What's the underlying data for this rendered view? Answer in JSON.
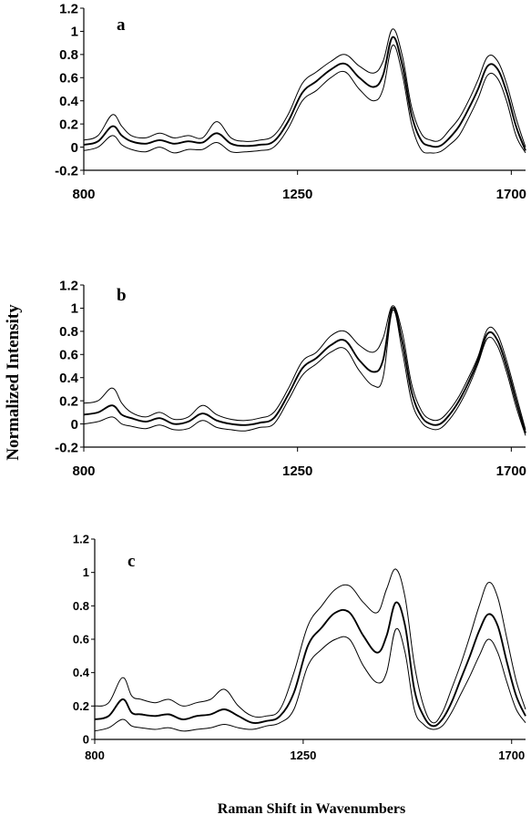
{
  "figure": {
    "ylabel": "Normalized Intensity",
    "xlabel": "Raman Shift in Wavenumbers"
  },
  "chart_data": [
    {
      "type": "line",
      "panel_label": "a",
      "xlim": [
        800,
        1730
      ],
      "ylim": [
        -0.2,
        1.2
      ],
      "xticks": [
        "800",
        "1250",
        "1700"
      ],
      "yticks": [
        "-0.2",
        "0",
        "0.2",
        "0.4",
        "0.6",
        "0.8",
        "1",
        "1.2"
      ],
      "grid": false,
      "x": [
        800,
        830,
        860,
        880,
        900,
        930,
        960,
        990,
        1020,
        1050,
        1080,
        1110,
        1140,
        1170,
        1200,
        1230,
        1260,
        1290,
        1320,
        1350,
        1380,
        1410,
        1430,
        1450,
        1470,
        1490,
        1510,
        1530,
        1550,
        1570,
        1590,
        1610,
        1630,
        1650,
        1670,
        1690,
        1710,
        1730
      ],
      "series": [
        {
          "values": [
            0.06,
            0.1,
            0.28,
            0.18,
            0.1,
            0.08,
            0.12,
            0.08,
            0.1,
            0.08,
            0.22,
            0.08,
            0.05,
            0.06,
            0.1,
            0.28,
            0.55,
            0.65,
            0.74,
            0.8,
            0.7,
            0.64,
            0.74,
            1.02,
            0.8,
            0.35,
            0.12,
            0.06,
            0.06,
            0.15,
            0.25,
            0.4,
            0.58,
            0.78,
            0.75,
            0.55,
            0.25,
            0.0
          ]
        },
        {
          "values": [
            0.02,
            0.05,
            0.18,
            0.1,
            0.05,
            0.03,
            0.06,
            0.03,
            0.05,
            0.04,
            0.12,
            0.03,
            0.01,
            0.02,
            0.05,
            0.22,
            0.47,
            0.57,
            0.67,
            0.72,
            0.6,
            0.52,
            0.62,
            0.95,
            0.72,
            0.28,
            0.06,
            0.01,
            0.01,
            0.08,
            0.18,
            0.33,
            0.5,
            0.7,
            0.68,
            0.48,
            0.18,
            -0.03
          ]
        },
        {
          "values": [
            -0.03,
            0.0,
            0.1,
            0.02,
            -0.02,
            -0.04,
            0.0,
            -0.05,
            -0.02,
            -0.02,
            0.04,
            -0.04,
            -0.04,
            -0.03,
            0.0,
            0.16,
            0.4,
            0.49,
            0.6,
            0.65,
            0.5,
            0.4,
            0.5,
            0.88,
            0.64,
            0.2,
            -0.02,
            -0.05,
            -0.04,
            0.02,
            0.1,
            0.25,
            0.42,
            0.62,
            0.6,
            0.4,
            0.1,
            -0.05
          ]
        }
      ]
    },
    {
      "type": "line",
      "panel_label": "b",
      "xlim": [
        800,
        1730
      ],
      "ylim": [
        -0.2,
        1.2
      ],
      "xticks": [
        "800",
        "1250",
        "1700"
      ],
      "yticks": [
        "-0.2",
        "0",
        "0.2",
        "0.4",
        "0.6",
        "0.8",
        "1",
        "1.2"
      ],
      "grid": false,
      "x": [
        800,
        830,
        860,
        880,
        900,
        930,
        960,
        990,
        1020,
        1050,
        1080,
        1110,
        1140,
        1170,
        1200,
        1230,
        1260,
        1290,
        1320,
        1350,
        1380,
        1410,
        1430,
        1450,
        1470,
        1490,
        1510,
        1530,
        1550,
        1570,
        1590,
        1610,
        1630,
        1650,
        1670,
        1690,
        1710,
        1730
      ],
      "series": [
        {
          "values": [
            0.18,
            0.2,
            0.31,
            0.18,
            0.1,
            0.06,
            0.1,
            0.04,
            0.06,
            0.16,
            0.08,
            0.04,
            0.03,
            0.05,
            0.1,
            0.3,
            0.54,
            0.62,
            0.76,
            0.8,
            0.68,
            0.62,
            0.74,
            1.02,
            0.8,
            0.35,
            0.12,
            0.04,
            0.04,
            0.12,
            0.24,
            0.4,
            0.58,
            0.82,
            0.78,
            0.55,
            0.25,
            -0.05
          ]
        },
        {
          "values": [
            0.08,
            0.1,
            0.16,
            0.08,
            0.05,
            0.02,
            0.05,
            0.0,
            0.02,
            0.09,
            0.03,
            0.0,
            -0.01,
            0.01,
            0.05,
            0.25,
            0.48,
            0.57,
            0.68,
            0.72,
            0.55,
            0.45,
            0.55,
            1.0,
            0.72,
            0.28,
            0.07,
            0.0,
            0.0,
            0.08,
            0.2,
            0.36,
            0.55,
            0.78,
            0.73,
            0.5,
            0.2,
            -0.08
          ]
        },
        {
          "values": [
            0.0,
            0.02,
            0.06,
            0.0,
            -0.02,
            -0.04,
            -0.01,
            -0.05,
            -0.04,
            0.03,
            -0.03,
            -0.05,
            -0.06,
            -0.03,
            0.0,
            0.2,
            0.42,
            0.52,
            0.62,
            0.65,
            0.46,
            0.33,
            0.4,
            0.98,
            0.64,
            0.2,
            0.02,
            -0.04,
            -0.04,
            0.04,
            0.16,
            0.32,
            0.52,
            0.74,
            0.68,
            0.45,
            0.15,
            -0.1
          ]
        }
      ]
    },
    {
      "type": "line",
      "panel_label": "c",
      "xlim": [
        800,
        1730
      ],
      "ylim": [
        0,
        1.2
      ],
      "xticks": [
        "800",
        "1250",
        "1700"
      ],
      "yticks": [
        "0",
        "0.2",
        "0.4",
        "0.6",
        "0.8",
        "1",
        "1.2"
      ],
      "grid": false,
      "x": [
        800,
        830,
        860,
        880,
        900,
        930,
        960,
        990,
        1020,
        1050,
        1080,
        1110,
        1140,
        1170,
        1200,
        1230,
        1260,
        1290,
        1320,
        1350,
        1380,
        1410,
        1430,
        1450,
        1470,
        1490,
        1510,
        1530,
        1550,
        1570,
        1590,
        1610,
        1630,
        1650,
        1670,
        1690,
        1710,
        1730
      ],
      "series": [
        {
          "values": [
            0.2,
            0.22,
            0.37,
            0.26,
            0.24,
            0.22,
            0.24,
            0.2,
            0.22,
            0.24,
            0.3,
            0.2,
            0.14,
            0.14,
            0.18,
            0.4,
            0.68,
            0.8,
            0.9,
            0.92,
            0.82,
            0.76,
            0.9,
            1.02,
            0.85,
            0.45,
            0.2,
            0.1,
            0.16,
            0.3,
            0.45,
            0.62,
            0.8,
            0.94,
            0.85,
            0.6,
            0.35,
            0.18
          ]
        },
        {
          "values": [
            0.12,
            0.14,
            0.24,
            0.16,
            0.15,
            0.14,
            0.15,
            0.12,
            0.14,
            0.15,
            0.18,
            0.14,
            0.1,
            0.11,
            0.14,
            0.28,
            0.56,
            0.67,
            0.76,
            0.76,
            0.62,
            0.52,
            0.62,
            0.82,
            0.68,
            0.3,
            0.14,
            0.08,
            0.12,
            0.22,
            0.36,
            0.5,
            0.65,
            0.75,
            0.68,
            0.46,
            0.26,
            0.14
          ]
        },
        {
          "values": [
            0.05,
            0.07,
            0.12,
            0.08,
            0.07,
            0.06,
            0.07,
            0.05,
            0.06,
            0.07,
            0.09,
            0.07,
            0.06,
            0.08,
            0.1,
            0.18,
            0.44,
            0.54,
            0.6,
            0.6,
            0.44,
            0.34,
            0.4,
            0.66,
            0.52,
            0.18,
            0.09,
            0.06,
            0.08,
            0.16,
            0.27,
            0.38,
            0.5,
            0.6,
            0.52,
            0.34,
            0.18,
            0.1
          ]
        }
      ]
    }
  ]
}
